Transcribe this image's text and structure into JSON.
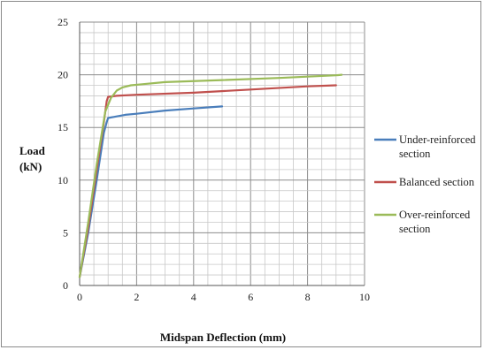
{
  "chart_data": {
    "type": "line",
    "title": "",
    "xlabel": "Midspan Deflection (mm)",
    "ylabel": [
      "Load",
      "(kN)"
    ],
    "xlim": [
      0,
      10
    ],
    "ylim": [
      0,
      25
    ],
    "x_ticks": [
      "0",
      "2",
      "4",
      "6",
      "8",
      "10"
    ],
    "y_ticks": [
      "0",
      "5",
      "10",
      "15",
      "20",
      "25"
    ],
    "grid": true,
    "legend_position": "right",
    "series": [
      {
        "name": [
          "Under-reinforced",
          "section"
        ],
        "color": "#4a7ebb",
        "x": [
          0,
          0.3,
          0.6,
          0.85,
          0.95,
          1.0,
          1.2,
          1.6,
          2.0,
          3.0,
          4.0,
          5.0
        ],
        "y": [
          0.8,
          5.0,
          10.0,
          14.5,
          15.5,
          15.9,
          16.0,
          16.2,
          16.3,
          16.6,
          16.8,
          17.0
        ]
      },
      {
        "name": [
          "Balanced section"
        ],
        "color": "#c0504d",
        "x": [
          0,
          0.3,
          0.6,
          0.85,
          0.95,
          1.0,
          1.3,
          2.0,
          4.0,
          6.0,
          8.0,
          9.0
        ],
        "y": [
          0.8,
          5.5,
          11.0,
          15.5,
          17.5,
          17.9,
          18.0,
          18.1,
          18.3,
          18.6,
          18.9,
          19.0
        ]
      },
      {
        "name": [
          "Over-reinforced",
          "section"
        ],
        "color": "#9bbb59",
        "x": [
          0,
          0.3,
          0.6,
          0.9,
          1.1,
          1.3,
          1.5,
          1.8,
          2.2,
          3.0,
          5.0,
          7.0,
          9.0,
          9.2
        ],
        "y": [
          0.8,
          6.0,
          11.5,
          16.5,
          17.8,
          18.5,
          18.8,
          19.0,
          19.1,
          19.3,
          19.5,
          19.7,
          19.95,
          20.0
        ]
      }
    ]
  }
}
